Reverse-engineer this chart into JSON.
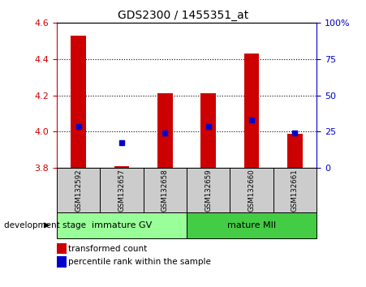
{
  "title": "GDS2300 / 1455351_at",
  "samples": [
    "GSM132592",
    "GSM132657",
    "GSM132658",
    "GSM132659",
    "GSM132660",
    "GSM132661"
  ],
  "bar_heights": [
    4.53,
    3.81,
    4.21,
    4.21,
    4.43,
    3.99
  ],
  "bar_base": 3.8,
  "percentile_values": [
    4.03,
    3.94,
    3.995,
    4.03,
    4.065,
    3.995
  ],
  "ylim": [
    3.8,
    4.6
  ],
  "yticks": [
    3.8,
    4.0,
    4.2,
    4.4,
    4.6
  ],
  "right_yticks": [
    0,
    25,
    50,
    75,
    100
  ],
  "right_ylim": [
    0,
    100
  ],
  "bar_color": "#cc0000",
  "dot_color": "#0000cc",
  "group1_label": "immature GV",
  "group2_label": "mature MII",
  "group1_color": "#99ff99",
  "group2_color": "#44cc44",
  "sample_box_color": "#cccccc",
  "dev_stage_label": "development stage",
  "legend1": "transformed count",
  "legend2": "percentile rank within the sample",
  "tick_color_left": "#cc0000",
  "tick_color_right": "#0000cc",
  "grid_color": "#000000",
  "background_color": "#ffffff",
  "plot_bg": "#ffffff"
}
